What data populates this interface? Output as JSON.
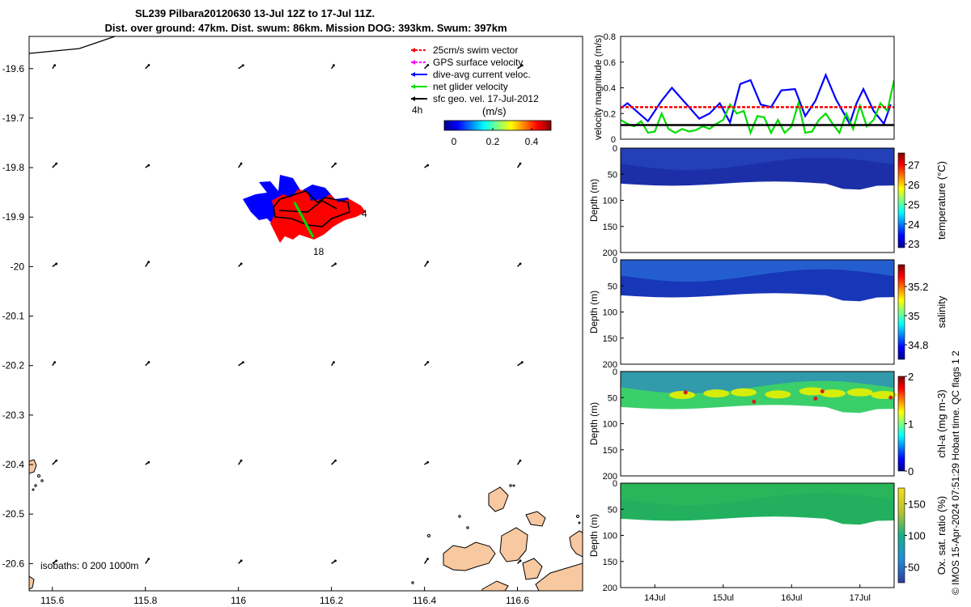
{
  "title": {
    "line1": "SL239 Pilbara20120630 13-Jul 12Z to 17-Jul 11Z.",
    "line2": "Dist. over ground: 47km. Dist. swum: 86km. Mission DOG: 393km. Swum: 397km"
  },
  "copyright": "© IMOS 15-Apr-2024 07:51:29 Hobart time. QC flags 1  2",
  "colors": {
    "swim": "#ff0000",
    "gps": "#ff00ff",
    "dive": "#0000ff",
    "net": "#00dd00",
    "geo": "#000000",
    "land": "#f8c8a0",
    "track_red": "#ff0000",
    "track_blue": "#0000ff"
  },
  "map": {
    "xlim": [
      115.55,
      116.74
    ],
    "ylim": [
      -20.655,
      -19.535
    ],
    "x_ticks": [
      "115.6",
      "115.8",
      "116",
      "116.2",
      "116.4",
      "116.6"
    ],
    "y_ticks": [
      "-19.6",
      "-19.7",
      "-19.8",
      "-19.9",
      "-20",
      "-20.1",
      "-20.2",
      "-20.3",
      "-20.4",
      "-20.5",
      "-20.6"
    ],
    "isobaths_label": "isobaths: 0   200  1000m",
    "start_label": "4",
    "end_label": "18",
    "legend": {
      "entries": [
        {
          "label": "25cm/s swim vector",
          "color": "#ff0000",
          "icon": "dashed-arrow-icon"
        },
        {
          "label": "GPS surface velocity",
          "color": "#ff00ff",
          "icon": "dashed-arrow-icon"
        },
        {
          "label": "dive-avg current veloc.",
          "color": "#0000ff",
          "icon": "arrow-icon"
        },
        {
          "label": "net glider velocity",
          "color": "#00dd00",
          "icon": "arrow-icon"
        },
        {
          "label": "sfc geo. vel. 17-Jul-2012",
          "color": "#000000",
          "icon": "arrow-icon"
        }
      ],
      "duration": "4h",
      "colorbar_title": "(m/s)",
      "colorbar_ticks": [
        "0",
        "0.2",
        "0.4"
      ],
      "colorbar_range": [
        -0.05,
        0.5
      ]
    }
  },
  "chart_data": [
    {
      "type": "line",
      "ylabel": "velocity magnitude (m/s)",
      "ylim": [
        0,
        0.8
      ],
      "y_ticks": [
        "0",
        "0.2",
        "0.4",
        "0.6",
        "0.8"
      ],
      "x_range_days": [
        13.5,
        17.5
      ],
      "series": [
        {
          "color": "#0000ff",
          "x": [
            13.5,
            13.6,
            13.75,
            13.9,
            14.1,
            14.25,
            14.45,
            14.65,
            14.8,
            14.95,
            15.1,
            15.25,
            15.4,
            15.55,
            15.7,
            15.85,
            16.05,
            16.2,
            16.35,
            16.5,
            16.65,
            16.85,
            16.95,
            17.05,
            17.2,
            17.35,
            17.45
          ],
          "values": [
            0.24,
            0.28,
            0.21,
            0.14,
            0.3,
            0.4,
            0.28,
            0.16,
            0.2,
            0.28,
            0.13,
            0.43,
            0.46,
            0.27,
            0.25,
            0.38,
            0.39,
            0.18,
            0.3,
            0.5,
            0.31,
            0.12,
            0.28,
            0.39,
            0.22,
            0.12,
            0.27
          ]
        },
        {
          "color": "#00dd00",
          "x": [
            13.5,
            13.6,
            13.7,
            13.8,
            13.9,
            14.0,
            14.1,
            14.2,
            14.3,
            14.4,
            14.5,
            14.6,
            14.7,
            14.8,
            14.9,
            15.0,
            15.1,
            15.2,
            15.3,
            15.4,
            15.5,
            15.6,
            15.7,
            15.8,
            15.9,
            16.0,
            16.1,
            16.2,
            16.3,
            16.4,
            16.5,
            16.6,
            16.7,
            16.8,
            16.9,
            17.0,
            17.1,
            17.2,
            17.3,
            17.4,
            17.5
          ],
          "values": [
            0.15,
            0.12,
            0.1,
            0.14,
            0.05,
            0.06,
            0.2,
            0.08,
            0.05,
            0.08,
            0.06,
            0.07,
            0.1,
            0.08,
            0.12,
            0.15,
            0.27,
            0.2,
            0.22,
            0.05,
            0.18,
            0.17,
            0.05,
            0.15,
            0.05,
            0.1,
            0.28,
            0.05,
            0.06,
            0.15,
            0.2,
            0.12,
            0.05,
            0.2,
            0.08,
            0.26,
            0.1,
            0.15,
            0.28,
            0.22,
            0.46
          ]
        },
        {
          "color": "#ff0000",
          "x": [
            13.5,
            17.5
          ],
          "values": [
            0.25,
            0.25
          ]
        },
        {
          "color": "#000000",
          "x": [
            13.5,
            17.5
          ],
          "values": [
            0.11,
            0.11
          ]
        }
      ]
    },
    {
      "type": "heatmap",
      "variable": "temperature",
      "colorbar_label": "temperature (°C)",
      "ylabel": "Depth (m)",
      "y_ticks": [
        "0",
        "50",
        "100",
        "150",
        "200"
      ],
      "ylim": [
        200,
        0
      ],
      "colorbar_ticks": [
        "23",
        "24",
        "25",
        "26",
        "27"
      ],
      "colorbar_range": [
        22.8,
        27.6
      ],
      "typical_value": 23.3
    },
    {
      "type": "heatmap",
      "variable": "salinity",
      "colorbar_label": "salinity",
      "ylabel": "Depth (m)",
      "y_ticks": [
        "0",
        "50",
        "100",
        "150",
        "200"
      ],
      "ylim": [
        200,
        0
      ],
      "colorbar_ticks": [
        "34.8",
        "35",
        "35.2"
      ],
      "colorbar_range": [
        34.7,
        35.35
      ],
      "typical_value": 34.95
    },
    {
      "type": "heatmap",
      "variable": "chl-a",
      "colorbar_label": "chl-a (mg m-3)",
      "ylabel": "Depth (m)",
      "y_ticks": [
        "0",
        "50",
        "100",
        "150",
        "200"
      ],
      "ylim": [
        200,
        0
      ],
      "colorbar_ticks": [
        "0",
        "1",
        "2"
      ],
      "colorbar_range": [
        0,
        2
      ],
      "typical_value": 0.9
    },
    {
      "type": "heatmap",
      "variable": "oxygen saturation",
      "colorbar_label": "Ox. sat. ratio (%)",
      "ylabel": "Depth (m)",
      "y_ticks": [
        "0",
        "50",
        "100",
        "150",
        "200"
      ],
      "ylim": [
        200,
        0
      ],
      "colorbar_ticks": [
        "50",
        "100",
        "150"
      ],
      "colorbar_range": [
        25,
        175
      ],
      "typical_value": 105
    }
  ],
  "time_axis": {
    "ticks": [
      "14Jul",
      "15Jul",
      "16Jul",
      "17Jul"
    ],
    "tick_days": [
      14,
      15,
      16,
      17
    ]
  }
}
